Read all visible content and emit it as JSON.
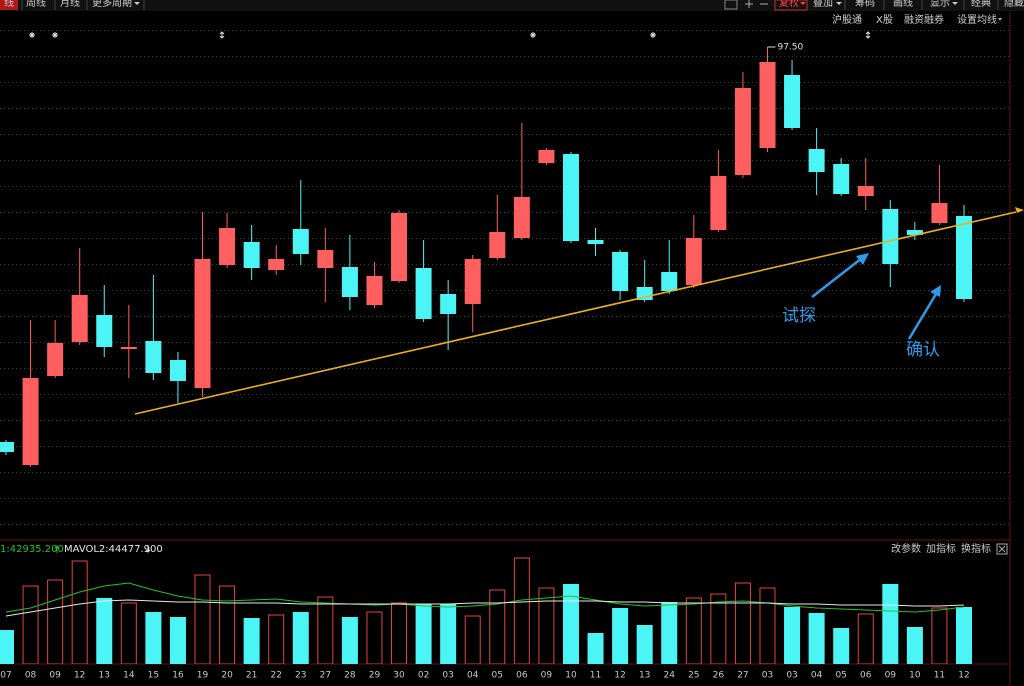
{
  "toolbar": {
    "left": [
      "线",
      "周线",
      "月线",
      "更多周期"
    ],
    "right": [
      "复权",
      "叠加",
      "筹码",
      "画线",
      "显示",
      "经典",
      "隐藏"
    ],
    "sub": [
      "沪股通",
      "X股",
      "融资融券",
      "设置均线"
    ]
  },
  "chart_data": [
    {
      "type": "candlestick",
      "categories": [
        "07",
        "08",
        "09",
        "12",
        "13",
        "14",
        "15",
        "16",
        "19",
        "20",
        "21",
        "22",
        "23",
        "27",
        "28",
        "29",
        "30",
        "02",
        "03",
        "04",
        "05",
        "06",
        "09",
        "10",
        "11",
        "12",
        "13",
        "24",
        "25",
        "26",
        "27",
        "03",
        "03",
        "04",
        "05",
        "06",
        "09",
        "10",
        "11",
        "12"
      ],
      "open": [
        58.0,
        55.7,
        64.6,
        68.0,
        70.7,
        67.3,
        68.1,
        66.2,
        63.4,
        75.7,
        78.0,
        75.2,
        79.3,
        75.4,
        75.5,
        71.7,
        74.1,
        75.4,
        72.8,
        71.8,
        76.4,
        78.4,
        85.9,
        86.8,
        78.2,
        77.0,
        73.5,
        75.0,
        73.7,
        79.2,
        84.7,
        87.4,
        94.7,
        87.3,
        85.8,
        82.6,
        81.3,
        79.2,
        79.9,
        80.6
      ],
      "high": [
        58.2,
        70.2,
        70.2,
        77.4,
        73.7,
        71.7,
        74.7,
        67.0,
        81.0,
        80.9,
        79.7,
        77.7,
        84.2,
        79.4,
        78.7,
        76.0,
        81.2,
        78.2,
        74.2,
        76.7,
        82.7,
        89.9,
        87.4,
        87.0,
        79.4,
        77.2,
        76.2,
        78.2,
        80.7,
        87.2,
        95.0,
        97.5,
        96.2,
        89.4,
        86.4,
        86.4,
        82.2,
        80.0,
        85.7,
        81.7
      ],
      "low": [
        56.7,
        55.5,
        64.4,
        67.7,
        66.5,
        64.4,
        64.2,
        61.9,
        62.5,
        75.4,
        74.2,
        74.7,
        75.7,
        72.0,
        71.2,
        71.4,
        73.9,
        70.0,
        67.2,
        69.0,
        76.2,
        78.2,
        85.7,
        77.9,
        76.6,
        72.2,
        72.0,
        72.8,
        73.4,
        79.0,
        84.4,
        87.0,
        89.2,
        82.7,
        82.6,
        81.2,
        73.5,
        78.2,
        79.7,
        72.0
      ],
      "close": [
        57.0,
        64.4,
        67.9,
        72.7,
        67.5,
        67.5,
        64.9,
        64.1,
        76.3,
        79.4,
        75.4,
        76.3,
        76.8,
        77.2,
        72.5,
        74.6,
        80.9,
        70.3,
        70.8,
        76.3,
        79.0,
        82.5,
        87.2,
        78.1,
        77.8,
        73.1,
        72.2,
        73.1,
        78.4,
        84.6,
        93.4,
        96.0,
        89.4,
        85.0,
        82.8,
        83.6,
        75.8,
        78.7,
        81.9,
        72.3
      ],
      "high_value_labels": [
        null,
        null,
        null,
        null,
        null,
        null,
        null,
        null,
        null,
        null,
        null,
        null,
        null,
        null,
        null,
        null,
        null,
        null,
        null,
        null,
        null,
        null,
        null,
        null,
        null,
        null,
        null,
        null,
        null,
        null,
        null,
        "97.50",
        null,
        null,
        null,
        null,
        null,
        null,
        null,
        null
      ],
      "up_color": "#ff5f5f",
      "down_color": "#4cf5f5",
      "ylim": [
        49.2,
        99.2
      ],
      "annotations": [
        "试探",
        "确认"
      ]
    },
    {
      "type": "bar",
      "values": [
        25160,
        57720,
        62160,
        76220,
        48840,
        45140,
        38480,
        34780,
        65860,
        57720,
        34040,
        36260,
        38480,
        49580,
        34780,
        38480,
        45140,
        44400,
        44400,
        35520,
        54760,
        78440,
        56240,
        59200,
        22940,
        41440,
        28860,
        45880,
        48840,
        51800,
        59940,
        56240,
        42180,
        37740,
        26640,
        37000,
        59200,
        27380,
        41440,
        42180
      ],
      "up_color": "#e0463f",
      "down_color": "#4cf5f5",
      "ylim": [
        0,
        79920
      ],
      "series": [
        {
          "name": "1:42935.200",
          "color": "#22c322",
          "values": [
            38480,
            41440,
            47360,
            53280,
            57720,
            59940,
            54760,
            50320,
            47360,
            46620,
            47360,
            48100,
            45880,
            45140,
            44400,
            43660,
            44400,
            42920,
            42180,
            42920,
            44400,
            47360,
            48840,
            50320,
            47360,
            44400,
            42920,
            43660,
            44400,
            45880,
            46620,
            45140,
            42920,
            41440,
            40700,
            39960,
            39220,
            38480,
            39960,
            42180
          ]
        },
        {
          "name": "MAVOL2:44477.900",
          "color": "#e8e8e8",
          "values": [
            35520,
            38480,
            41440,
            44400,
            46620,
            47360,
            46620,
            45880,
            45880,
            45140,
            45140,
            45140,
            44400,
            44400,
            44400,
            44400,
            44400,
            44400,
            44400,
            45140,
            45140,
            45880,
            46620,
            46620,
            46620,
            45880,
            45880,
            45140,
            45140,
            45140,
            45140,
            45140,
            44400,
            44400,
            43660,
            43660,
            43660,
            42920,
            42920,
            43660
          ]
        }
      ]
    }
  ],
  "volume_tools": [
    "改参数",
    "加指标",
    "换指标"
  ]
}
